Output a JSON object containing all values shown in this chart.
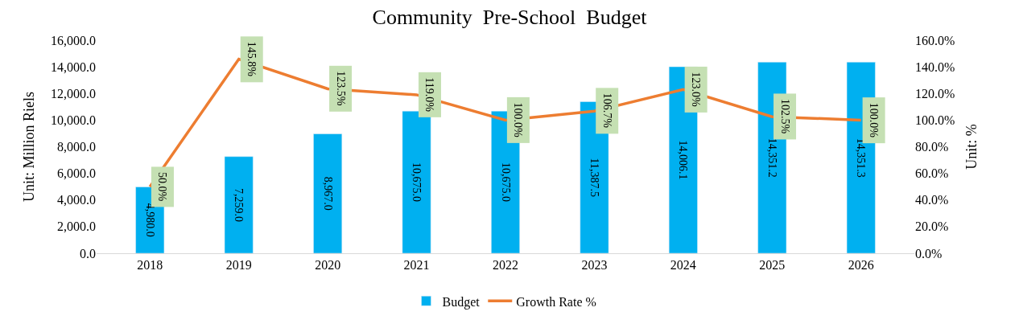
{
  "chart_data": {
    "type": "bar",
    "title": "Community  Pre-School  Budget",
    "ylabel": "Unit: Million Riels",
    "y2label": "Unit: %",
    "categories": [
      "2018",
      "2019",
      "2020",
      "2021",
      "2022",
      "2023",
      "2024",
      "2025",
      "2026"
    ],
    "series": [
      {
        "name": "Budget",
        "color": "#00b0f0",
        "values": [
          4980.0,
          7259.0,
          8967.0,
          10675.0,
          10675.0,
          11387.5,
          14006.1,
          14351.2,
          14351.3
        ],
        "value_labels": [
          "4,980.0",
          "7,259.0",
          "8,967.0",
          "10,675.0",
          "10,675.0",
          "11,387.5",
          "14,006.1",
          "14,351.2",
          "14,351.3"
        ]
      },
      {
        "name": "Growth Rate %",
        "type": "line",
        "axis": "y2",
        "color": "#ed7d31",
        "values": [
          50.0,
          145.8,
          123.5,
          119.0,
          100.0,
          106.7,
          123.0,
          102.5,
          100.0
        ],
        "value_labels": [
          "50.0%",
          "145.8%",
          "123.5%",
          "119.0%",
          "100.0%",
          "106.7%",
          "123.0%",
          "102.5%",
          "100.0%"
        ]
      }
    ],
    "ylim": [
      0,
      16000
    ],
    "yticks": [
      {
        "value": 0,
        "label": "0.0"
      },
      {
        "value": 2000,
        "label": "2,000.0"
      },
      {
        "value": 4000,
        "label": "4,000.0"
      },
      {
        "value": 6000,
        "label": "6,000.0"
      },
      {
        "value": 8000,
        "label": "8,000.0"
      },
      {
        "value": 10000,
        "label": "10,000.0"
      },
      {
        "value": 12000,
        "label": "12,000.0"
      },
      {
        "value": 14000,
        "label": "14,000.0"
      },
      {
        "value": 16000,
        "label": "16,000.0"
      }
    ],
    "y2lim": [
      0,
      160
    ],
    "y2ticks": [
      {
        "value": 0,
        "label": "0.0%"
      },
      {
        "value": 20,
        "label": "20.0%"
      },
      {
        "value": 40,
        "label": "40.0%"
      },
      {
        "value": 60,
        "label": "60.0%"
      },
      {
        "value": 80,
        "label": "80.0%"
      },
      {
        "value": 100,
        "label": "100.0%"
      },
      {
        "value": 120,
        "label": "120.0%"
      },
      {
        "value": 140,
        "label": "140.0%"
      },
      {
        "value": 160,
        "label": "160.0%"
      }
    ],
    "legend": "bottom",
    "marker": "none",
    "line_style": "solid"
  }
}
